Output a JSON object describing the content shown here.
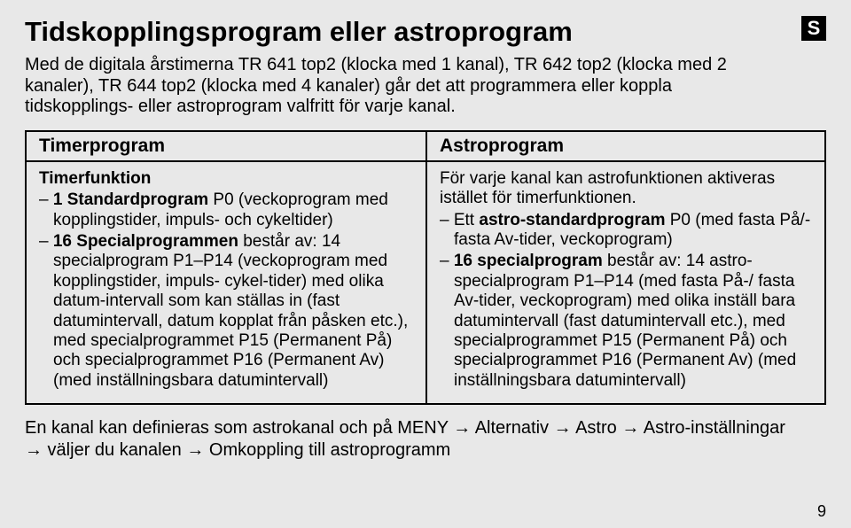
{
  "badge": "S",
  "title": "Tidskopplingsprogram eller astroprogram",
  "intro": "Med de digitala årstimerna TR 641 top2 (klocka med 1 kanal), TR 642 top2 (klocka med 2 kanaler), TR 644 top2 (klocka med 4 kanaler) går det att programmera eller koppla tidskopplings- eller astroprogram valfritt för varje kanal.",
  "left": {
    "header": "Timerprogram",
    "subheader": "Timerfunktion",
    "item1_a": "1 Standardprogram",
    "item1_b": " P0 (veckoprogram med kopplingstider, impuls- och cykeltider)",
    "item2_a": "16 Specialprogrammen",
    "item2_b": " består av: 14 specialprogram P1–P14 (veckoprogram med kopplingstider, impuls- cykel-tider) med olika datum-intervall som kan ställas in (fast datumintervall, datum kopplat från påsken etc.), med specialprogrammet P15 (Permanent På) och specialprogrammet P16 (Permanent Av) (med inställningsbara datumintervall)"
  },
  "right": {
    "header": "Astroprogram",
    "para1": "För varje kanal kan astrofunktionen aktiveras istället för timerfunktionen.",
    "item1_a": "Ett ",
    "item1_b": "astro-standardprogram",
    "item1_c": " P0 (med fasta På/- fasta Av-tider, veckoprogram)",
    "item2_a": "16 specialprogram",
    "item2_b": " består av: 14 astro-specialprogram P1–P14 (med fasta På-/ fasta Av-tider, veckoprogram) med olika inställ bara datumintervall (fast datumintervall etc.), med specialprogrammet P15 (Permanent På) och specialprogrammet P16 (Permanent Av) (med inställningsbara datumintervall)"
  },
  "outro_line1_a": "En kanal kan definieras som astrokanal och på MENY ",
  "outro_line1_b": " Alternativ ",
  "outro_line1_c": " Astro ",
  "outro_line1_d": " Astro-inställningar",
  "outro_line2_a": " väljer du kanalen ",
  "outro_line2_b": " Omkoppling till astroprogramm",
  "arrow": "→",
  "page_number": "9"
}
